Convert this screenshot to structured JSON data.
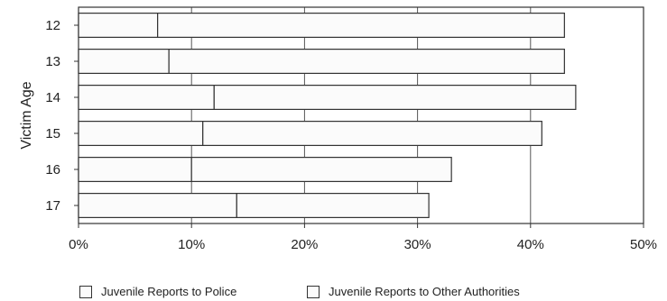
{
  "chart_data": {
    "type": "bar",
    "orientation": "horizontal",
    "stacked": true,
    "categories": [
      "12",
      "13",
      "14",
      "15",
      "16",
      "17"
    ],
    "series": [
      {
        "name": "Juvenile Reports to Police",
        "values": [
          7,
          8,
          12,
          11,
          10,
          14
        ]
      },
      {
        "name": "Juvenile Reports to Other Authorities",
        "values": [
          36,
          35,
          32,
          30,
          23,
          17
        ]
      }
    ],
    "title": "",
    "xlabel": "",
    "ylabel": "Victim Age",
    "xlim": [
      0,
      50
    ],
    "xticks": [
      "0%",
      "10%",
      "20%",
      "30%",
      "40%",
      "50%"
    ],
    "grid": "vertical",
    "legend_position": "bottom",
    "colors": {
      "bar_fill": "#fbfbfb",
      "bar_stroke": "#333333",
      "grid": "#555555"
    }
  }
}
